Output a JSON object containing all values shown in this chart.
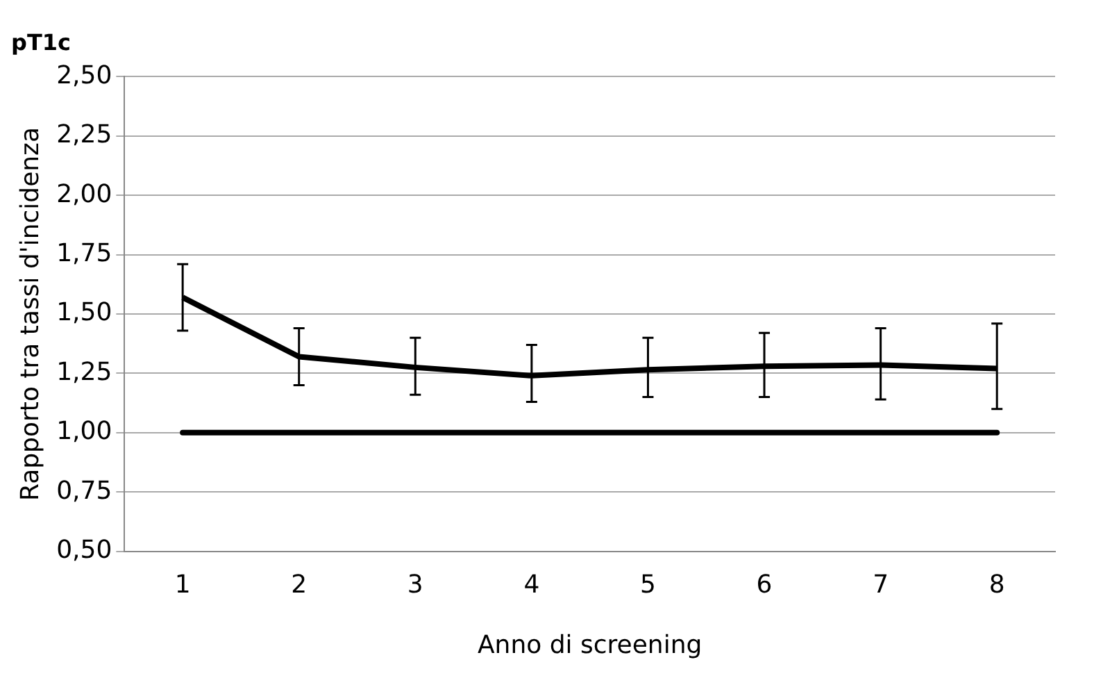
{
  "chart_data": {
    "type": "line",
    "title": "pT1c",
    "xlabel": "Anno di screening",
    "ylabel": "Rapporto tra tassi d'incidenza",
    "categories": [
      "1",
      "2",
      "3",
      "4",
      "5",
      "6",
      "7",
      "8"
    ],
    "series": [
      {
        "color": "#000000",
        "values": [
          1.57,
          1.32,
          1.275,
          1.24,
          1.265,
          1.28,
          1.285,
          1.27
        ],
        "errors": [
          [
            1.43,
            1.71
          ],
          [
            1.2,
            1.44
          ],
          [
            1.16,
            1.4
          ],
          [
            1.13,
            1.37
          ],
          [
            1.15,
            1.4
          ],
          [
            1.15,
            1.42
          ],
          [
            1.14,
            1.44
          ],
          [
            1.1,
            1.46
          ]
        ]
      }
    ],
    "ylim": [
      0.5,
      2.5
    ],
    "yticks": [
      {
        "value": 0.5,
        "label": "0,50"
      },
      {
        "value": 0.75,
        "label": "0,75"
      },
      {
        "value": 1,
        "label": "1,00"
      },
      {
        "value": 1.25,
        "label": "1,25"
      },
      {
        "value": 1.5,
        "label": "1,50"
      },
      {
        "value": 1.75,
        "label": "1,75"
      },
      {
        "value": 2,
        "label": "2,00"
      },
      {
        "value": 2.25,
        "label": "2,25"
      },
      {
        "value": 2.5,
        "label": "2,50"
      }
    ],
    "ref_lines": [
      {
        "axis": "y",
        "value": 1,
        "color": "#000000"
      }
    ],
    "grid": "y",
    "marker": "none",
    "line_style": "solid",
    "legend": false
  }
}
